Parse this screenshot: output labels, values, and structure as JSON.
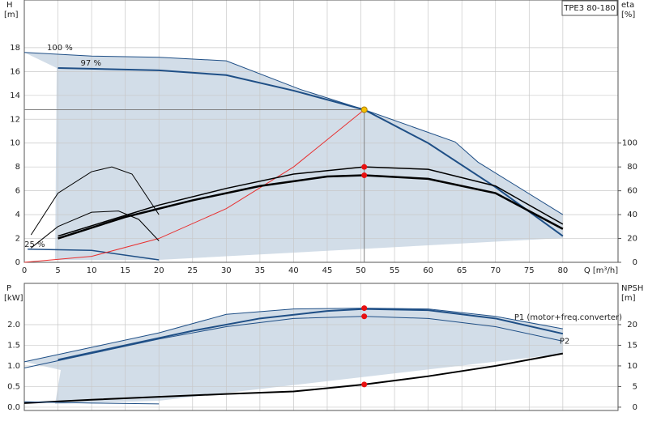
{
  "chart_data": [
    {
      "type": "line",
      "label": "TPE3 80-180",
      "ylabel": "H",
      "yunit": "[m]",
      "y2label": "eta",
      "y2unit": "[%]",
      "xlabel": "Q [m³/h]",
      "xlim": [
        0,
        88.2
      ],
      "xticks": [
        0,
        5,
        10,
        15,
        20,
        25,
        30,
        35,
        40,
        45,
        50,
        55,
        60,
        65,
        70,
        75,
        80
      ],
      "ylim": [
        0,
        22
      ],
      "yticks": [
        0,
        2,
        4,
        6,
        8,
        10,
        12,
        14,
        16,
        18
      ],
      "y2lim": [
        0,
        220
      ],
      "y2ticks": [
        0,
        20,
        40,
        60,
        80,
        100
      ],
      "grid": true,
      "series": [
        {
          "name": "100 %",
          "color": "#1f4f86",
          "line_width": 1,
          "x": [
            0,
            10,
            20,
            30,
            41,
            50.5,
            64,
            67.4,
            80
          ],
          "values": [
            17.6,
            17.3,
            17.2,
            16.9,
            14.5,
            12.8,
            10.1,
            8.4,
            4.0
          ]
        },
        {
          "name": "97 %",
          "color": "#1f4f86",
          "line_width": 2,
          "x": [
            5,
            20,
            30,
            40,
            50.5,
            60,
            70,
            80
          ],
          "values": [
            16.3,
            16.1,
            15.7,
            14.4,
            12.8,
            10,
            6.3,
            2.2
          ]
        },
        {
          "name": "25 %",
          "color": "#1f4f86",
          "line_width": 1.5,
          "x": [
            0.5,
            10,
            20
          ],
          "values": [
            1.1,
            1.0,
            0.2
          ]
        },
        {
          "color": "#e83030",
          "line_width": 1,
          "x": [
            0,
            10,
            20,
            30,
            40,
            50.5
          ],
          "values": [
            0,
            0.5,
            2.0,
            4.5,
            8.0,
            12.8
          ]
        },
        {
          "color": "#000000",
          "line_width": 1.5,
          "axis": "y2",
          "x": [
            5,
            20,
            30,
            40,
            50.5,
            60,
            70,
            80
          ],
          "values": [
            22,
            48,
            62,
            74,
            80,
            78,
            64,
            32
          ]
        },
        {
          "color": "#000000",
          "line_width": 2.5,
          "axis": "y2",
          "x": [
            5,
            15,
            25,
            35,
            45,
            50.5,
            60,
            70,
            80
          ],
          "values": [
            20,
            38,
            52,
            64,
            72,
            73,
            70,
            58,
            28
          ]
        },
        {
          "color": "#000000",
          "line_width": 1,
          "axis": "y2",
          "x": [
            1,
            5,
            10,
            13,
            16,
            20
          ],
          "values": [
            23,
            58,
            76,
            80,
            74,
            40
          ]
        },
        {
          "color": "#000000",
          "line_width": 1,
          "axis": "y2",
          "x": [
            1,
            5,
            10,
            14,
            17,
            20
          ],
          "values": [
            12,
            30,
            42,
            43,
            36,
            18
          ]
        }
      ],
      "markers": [
        {
          "color": "#f5c000",
          "x": 50.5,
          "values": 12.8
        },
        {
          "color": "#e81010",
          "x": 50.5,
          "values": 80,
          "axis": "y2"
        },
        {
          "color": "#e81010",
          "x": 50.5,
          "values": 73,
          "axis": "y2"
        }
      ]
    },
    {
      "type": "line",
      "ylabel": "P",
      "yunit": "[kW]",
      "y2label": "NPSH",
      "y2unit": "[m]",
      "xlim": [
        0,
        88.2
      ],
      "xticks": [
        0,
        5,
        10,
        15,
        20,
        25,
        30,
        35,
        40,
        45,
        50,
        55,
        60,
        65,
        70,
        75,
        80
      ],
      "ylim": [
        -0.08,
        3.0
      ],
      "yticks": [
        {
          "value": 0,
          "label": "0.0"
        },
        0.5,
        {
          "value": 1,
          "label": "1.0"
        },
        1.5,
        {
          "value": 2,
          "label": "2.0"
        }
      ],
      "y2lim": [
        -0.8,
        30
      ],
      "y2ticks": [
        0,
        5,
        10,
        15,
        20
      ],
      "grid": true,
      "series": [
        {
          "color": "#1f4f86",
          "line_width": 1,
          "x": [
            0,
            10,
            20,
            30,
            40,
            50.5,
            60,
            70,
            80
          ],
          "values": [
            1.1,
            1.45,
            1.8,
            2.25,
            2.38,
            2.4,
            2.38,
            2.2,
            1.9
          ]
        },
        {
          "name": "P1 (motor+freq.converter)",
          "color": "#1f4f86",
          "line_width": 2,
          "x": [
            5,
            15,
            25,
            35,
            45,
            50.5,
            60,
            70,
            80
          ],
          "values": [
            1.15,
            1.5,
            1.85,
            2.15,
            2.33,
            2.38,
            2.35,
            2.15,
            1.78
          ]
        },
        {
          "name": "P2",
          "color": "#1f4f86",
          "line_width": 1,
          "x": [
            0,
            10,
            20,
            30,
            40,
            50.5,
            60,
            70,
            80
          ],
          "values": [
            0.95,
            1.3,
            1.65,
            1.95,
            2.15,
            2.2,
            2.15,
            1.95,
            1.6
          ]
        },
        {
          "color": "#000000",
          "line_width": 2,
          "axis": "y2",
          "x": [
            0,
            10,
            20,
            30,
            40,
            50.5,
            60,
            70,
            80
          ],
          "values": [
            1,
            1.8,
            2.5,
            3.2,
            3.8,
            5.5,
            7.5,
            10,
            13
          ]
        },
        {
          "color": "#1f4f86",
          "line_width": 1,
          "x": [
            0,
            10,
            20
          ],
          "values": [
            0.13,
            0.1,
            0.08
          ]
        }
      ],
      "markers": [
        {
          "color": "#e81010",
          "x": 50.5,
          "values": 2.4
        },
        {
          "color": "#e81010",
          "x": 50.5,
          "values": 2.2
        },
        {
          "color": "#e81010",
          "x": 50.5,
          "values": 5.5,
          "axis": "y2"
        }
      ]
    }
  ]
}
